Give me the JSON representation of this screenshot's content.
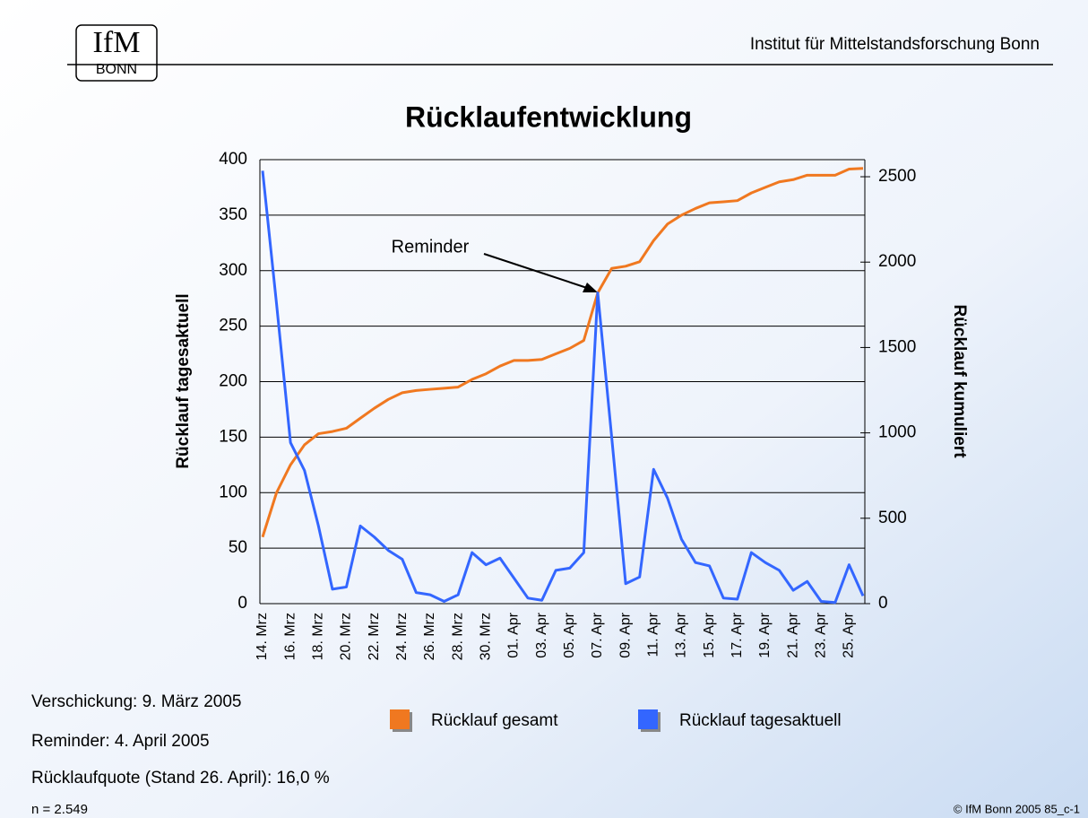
{
  "header": {
    "logo_top": "IfM",
    "logo_bottom": "BONN",
    "institute": "Institut für Mittelstandsforschung Bonn"
  },
  "chart_data": {
    "type": "line",
    "title": "Rücklaufentwicklung",
    "categories": [
      "14. Mrz",
      null,
      "16. Mrz",
      null,
      "18. Mrz",
      null,
      "20. Mrz",
      null,
      "22. Mrz",
      null,
      "24. Mrz",
      null,
      "26. Mrz",
      null,
      "28. Mrz",
      null,
      "30. Mrz",
      null,
      "01. Apr",
      null,
      "03. Apr",
      null,
      "05. Apr",
      null,
      "07. Apr",
      null,
      "09. Apr",
      null,
      "11. Apr",
      null,
      "13. Apr",
      null,
      "15. Apr",
      null,
      "17. Apr",
      null,
      "19. Apr",
      null,
      "21. Apr",
      null,
      "23. Apr",
      null,
      "25. Apr",
      null
    ],
    "series": [
      {
        "name": "Rücklauf gesamt",
        "color": "#f07820",
        "axis": "y2",
        "values": [
          390,
          650,
          813,
          930,
          995,
          1008,
          1027,
          1086,
          1144,
          1196,
          1235,
          1248,
          1255,
          1261,
          1268,
          1313,
          1346,
          1391,
          1424,
          1424,
          1430,
          1463,
          1495,
          1541,
          1820,
          1963,
          1976,
          2002,
          2126,
          2223,
          2275,
          2314,
          2347,
          2353,
          2360,
          2405,
          2438,
          2470,
          2483,
          2509,
          2509,
          2509,
          2545,
          2549
        ]
      },
      {
        "name": "Rücklauf tagesaktuell",
        "color": "#3366ff",
        "values": [
          390,
          270,
          145,
          120,
          70,
          13,
          15,
          70,
          60,
          48,
          40,
          10,
          8,
          2,
          8,
          46,
          35,
          41,
          23,
          5,
          3,
          30,
          32,
          46,
          280,
          150,
          18,
          24,
          121,
          95,
          58,
          37,
          34,
          5,
          4,
          46,
          37,
          30,
          12,
          20,
          2,
          1,
          35,
          7
        ]
      }
    ],
    "ylabel": "Rücklauf tagesaktuell",
    "y2label": "Rücklauf kumuliert",
    "ylim": [
      0,
      400
    ],
    "yticks": [
      0,
      50,
      100,
      150,
      200,
      250,
      300,
      350,
      400
    ],
    "y2lim": [
      0,
      2600
    ],
    "y2ticks": [
      0,
      500,
      1000,
      1500,
      2000,
      2500
    ],
    "grid": true,
    "legend": "bottom",
    "annotation": "Reminder"
  },
  "notes": [
    "Verschickung: 9. März 2005",
    "Reminder: 4. April 2005",
    "Rücklaufquote (Stand 26. April): 16,0 %"
  ],
  "footer": {
    "n": "n = 2.549",
    "copyright": "© IfM Bonn 2005  85_c-1"
  }
}
